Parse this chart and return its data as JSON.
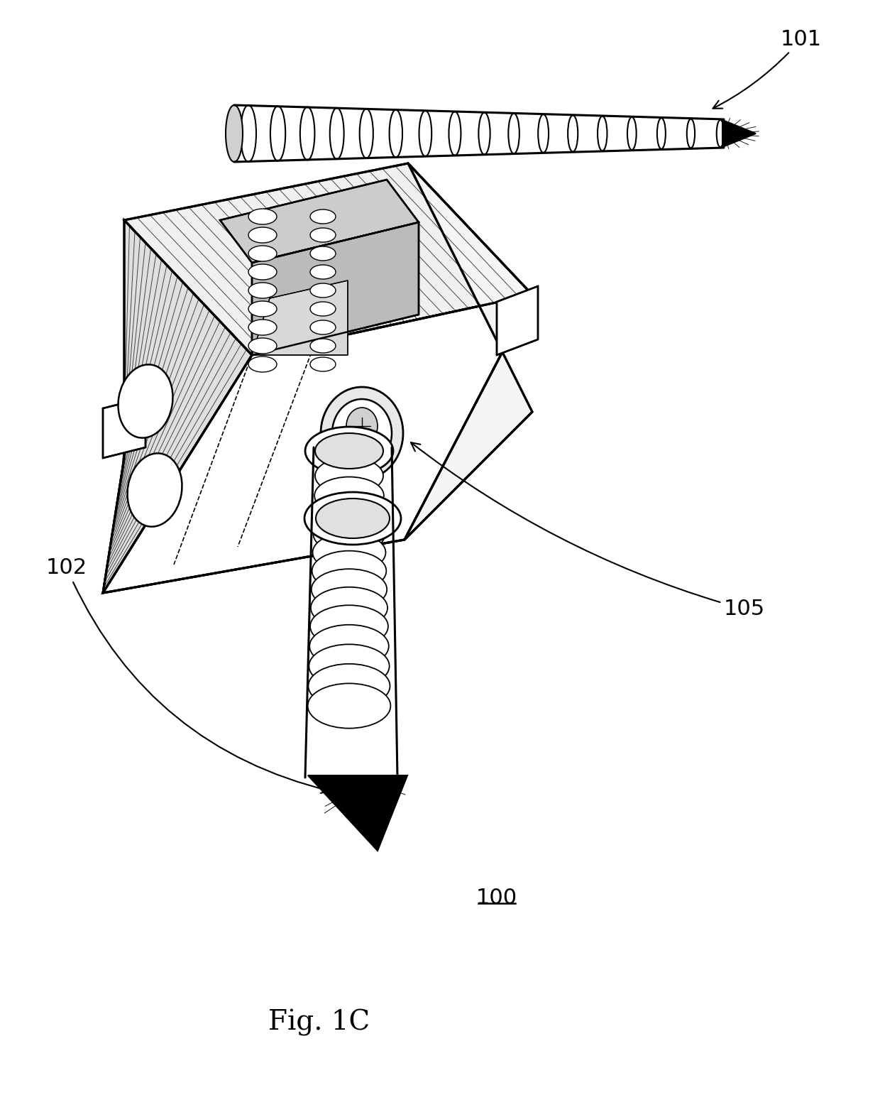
{
  "fig_label": "Fig. 1C",
  "background_color": "#ffffff",
  "line_color": "#000000",
  "fig_label_fontsize": 28,
  "ref_label_fontsize": 22
}
